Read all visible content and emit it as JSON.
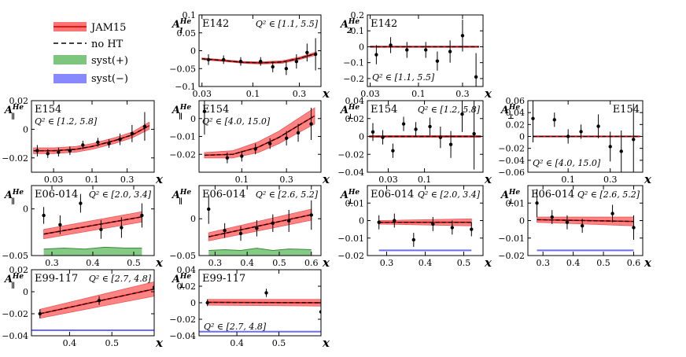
{
  "legend": [
    {
      "key": "jam15",
      "label": "JAM15",
      "color": "#ff5a5a"
    },
    {
      "key": "noht",
      "label": "no HT",
      "color": "#000000"
    },
    {
      "key": "syst_plus",
      "label": "syst(+)",
      "color": "#5cb85c"
    },
    {
      "key": "syst_minus",
      "label": "syst(−)",
      "color": "#6b6bff"
    }
  ],
  "chart_data": [
    {
      "id": "p01",
      "type": "scatter",
      "experiment": "E142",
      "ylabel": "A",
      "ylabel_sub": "1",
      "ylabel_sup": "He",
      "q2": "Q² ∈ [1.1, 5.5]",
      "xlabel": "x",
      "xscale": "log",
      "xlim": [
        0.028,
        0.5
      ],
      "ylim": [
        -0.1,
        0.1
      ],
      "yticks": [
        -0.1,
        -0.05,
        0,
        0.05,
        0.1
      ],
      "ytick_labels": [
        "−0.1",
        "−0.05",
        "0",
        "0.05",
        "0.1"
      ],
      "xticks": [
        0.03,
        0.1,
        0.3
      ],
      "xtick_labels": [
        "0.03",
        "0.1",
        "0.3"
      ],
      "points": [
        [
          0.035,
          -0.025,
          0.015
        ],
        [
          0.05,
          -0.025,
          0.012
        ],
        [
          0.075,
          -0.03,
          0.012
        ],
        [
          0.12,
          -0.03,
          0.012
        ],
        [
          0.16,
          -0.045,
          0.015
        ],
        [
          0.22,
          -0.05,
          0.018
        ],
        [
          0.28,
          -0.03,
          0.02
        ],
        [
          0.36,
          -0.005,
          0.025
        ],
        [
          0.44,
          -0.01,
          0.045
        ]
      ],
      "band": [
        [
          0.03,
          -0.025,
          -0.02
        ],
        [
          0.05,
          -0.03,
          -0.025
        ],
        [
          0.08,
          -0.035,
          -0.03
        ],
        [
          0.12,
          -0.037,
          -0.031
        ],
        [
          0.2,
          -0.035,
          -0.028
        ],
        [
          0.3,
          -0.025,
          -0.018
        ],
        [
          0.45,
          -0.012,
          -0.003
        ]
      ]
    },
    {
      "id": "p02",
      "type": "scatter",
      "experiment": "E142",
      "ylabel": "A",
      "ylabel_sub": "2",
      "ylabel_sup": "He",
      "q2": "Q² ∈ [1.1, 5.5]",
      "xlabel": "x",
      "xscale": "log",
      "xlim": [
        0.028,
        0.5
      ],
      "ylim": [
        -0.25,
        0.2
      ],
      "yticks": [
        -0.2,
        -0.1,
        0,
        0.1,
        0.2
      ],
      "ytick_labels": [
        "−0.2",
        "−0.1",
        "0",
        "0.1",
        "0.2"
      ],
      "xticks": [
        0.03,
        0.1,
        0.3
      ],
      "xtick_labels": [
        "0.03",
        "0.1",
        "0.3"
      ],
      "points": [
        [
          0.035,
          -0.05,
          0.06
        ],
        [
          0.05,
          0.01,
          0.05
        ],
        [
          0.075,
          -0.02,
          0.05
        ],
        [
          0.12,
          -0.02,
          0.05
        ],
        [
          0.16,
          -0.09,
          0.06
        ],
        [
          0.22,
          -0.03,
          0.07
        ],
        [
          0.3,
          0.07,
          0.1
        ],
        [
          0.42,
          -0.19,
          0.15
        ]
      ],
      "band": [
        [
          0.03,
          -0.004,
          0.004
        ],
        [
          0.45,
          -0.004,
          0.004
        ]
      ]
    },
    {
      "id": "p03",
      "type": "scatter",
      "experiment": "E154",
      "ylabel": "A",
      "ylabel_sub": "∥",
      "ylabel_sup": "He",
      "q2": "Q² ∈ [1.2, 5.8]",
      "xlabel": "x",
      "xscale": "log",
      "xlim": [
        0.015,
        0.7
      ],
      "ylim": [
        -0.03,
        0.02
      ],
      "yticks": [
        -0.02,
        0,
        0.02
      ],
      "ytick_labels": [
        "−0.02",
        "0",
        "0.02"
      ],
      "xticks": [
        0.03,
        0.1,
        0.3
      ],
      "xtick_labels": [
        "0.03",
        "0.1",
        "0.3"
      ],
      "points": [
        [
          0.018,
          -0.015,
          0.004
        ],
        [
          0.025,
          -0.017,
          0.003
        ],
        [
          0.035,
          -0.016,
          0.003
        ],
        [
          0.05,
          -0.015,
          0.003
        ],
        [
          0.075,
          -0.011,
          0.003
        ],
        [
          0.12,
          -0.009,
          0.003
        ],
        [
          0.17,
          -0.01,
          0.003
        ],
        [
          0.24,
          -0.007,
          0.004
        ],
        [
          0.35,
          -0.003,
          0.006
        ],
        [
          0.52,
          0.002,
          0.01
        ]
      ],
      "band": [
        [
          0.016,
          -0.017,
          -0.013
        ],
        [
          0.03,
          -0.017,
          -0.013
        ],
        [
          0.06,
          -0.016,
          -0.012
        ],
        [
          0.1,
          -0.014,
          -0.01
        ],
        [
          0.2,
          -0.01,
          -0.006
        ],
        [
          0.35,
          -0.006,
          -0.002
        ],
        [
          0.6,
          0.0,
          0.005
        ]
      ]
    },
    {
      "id": "p04",
      "type": "scatter",
      "experiment": "E154",
      "ylabel": "A",
      "ylabel_sub": "∥",
      "ylabel_sup": "He",
      "q2": "Q² ∈ [4.0, 15.0]",
      "xlabel": "x",
      "xscale": "log",
      "xlim": [
        0.035,
        0.7
      ],
      "ylim": [
        -0.03,
        0.01
      ],
      "yticks": [
        -0.02,
        -0.01,
        0
      ],
      "ytick_labels": [
        "−0.02",
        "−0.01",
        "0"
      ],
      "xticks": [
        0.1,
        0.3
      ],
      "xtick_labels": [
        "0.1",
        "0.3"
      ],
      "points": [
        [
          0.04,
          0.004,
          0.013
        ],
        [
          0.07,
          -0.022,
          0.003
        ],
        [
          0.1,
          -0.021,
          0.003
        ],
        [
          0.14,
          -0.017,
          0.003
        ],
        [
          0.2,
          -0.014,
          0.003
        ],
        [
          0.3,
          -0.011,
          0.004
        ],
        [
          0.4,
          -0.008,
          0.005
        ],
        [
          0.55,
          -0.003,
          0.009
        ]
      ],
      "band": [
        [
          0.04,
          -0.022,
          -0.019
        ],
        [
          0.08,
          -0.022,
          -0.018
        ],
        [
          0.15,
          -0.019,
          -0.013
        ],
        [
          0.25,
          -0.014,
          -0.007
        ],
        [
          0.4,
          -0.008,
          0.0
        ],
        [
          0.6,
          -0.003,
          0.006
        ]
      ]
    },
    {
      "id": "p05",
      "type": "scatter",
      "experiment": "E154",
      "ylabel": "A",
      "ylabel_sub": "⊥",
      "ylabel_sup": "He",
      "q2": "Q² ∈ [1.2, 5.8]",
      "xlabel": "x",
      "xscale": "log",
      "xlim": [
        0.015,
        0.7
      ],
      "ylim": [
        -0.04,
        0.04
      ],
      "yticks": [
        -0.04,
        -0.02,
        0,
        0.02,
        0.04
      ],
      "ytick_labels": [
        "−0.04",
        "−0.02",
        "0",
        "0.02",
        "0.04"
      ],
      "xticks": [
        0.03,
        0.1
      ],
      "xtick_labels": [
        "0.03",
        "0.1"
      ],
      "points": [
        [
          0.018,
          0.005,
          0.01
        ],
        [
          0.025,
          -0.001,
          0.008
        ],
        [
          0.035,
          -0.016,
          0.008
        ],
        [
          0.05,
          0.014,
          0.008
        ],
        [
          0.075,
          0.008,
          0.008
        ],
        [
          0.12,
          0.011,
          0.01
        ],
        [
          0.17,
          -0.001,
          0.012
        ],
        [
          0.24,
          -0.009,
          0.015
        ],
        [
          0.35,
          0.025,
          0.02
        ],
        [
          0.52,
          0.003,
          0.04
        ]
      ],
      "band": [
        [
          0.016,
          -0.001,
          0.001
        ],
        [
          0.65,
          -0.001,
          0.001
        ]
      ]
    },
    {
      "id": "p06",
      "type": "scatter",
      "experiment": "E154",
      "ylabel": "A",
      "ylabel_sub": "⊥",
      "ylabel_sup": "He",
      "q2": "Q² ∈ [4.0, 15.0]",
      "xlabel": "x",
      "xscale": "log",
      "xlim": [
        0.035,
        0.7
      ],
      "ylim": [
        -0.06,
        0.06
      ],
      "yticks": [
        -0.06,
        -0.04,
        -0.02,
        0,
        0.02,
        0.04,
        0.06
      ],
      "ytick_labels": [
        "−0.06",
        "−0.04",
        "−0.02",
        "0",
        "0.02",
        "0.04",
        "0.06"
      ],
      "xticks": [
        0.1,
        0.3
      ],
      "xtick_labels": [
        "0.1",
        "0.3"
      ],
      "points": [
        [
          0.04,
          0.03,
          0.04
        ],
        [
          0.07,
          0.028,
          0.012
        ],
        [
          0.1,
          0.0,
          0.012
        ],
        [
          0.14,
          0.008,
          0.012
        ],
        [
          0.22,
          0.017,
          0.02
        ],
        [
          0.3,
          -0.017,
          0.025
        ],
        [
          0.4,
          -0.025,
          0.035
        ],
        [
          0.55,
          -0.005,
          0.06
        ]
      ],
      "band": [
        [
          0.04,
          -0.001,
          0.001
        ],
        [
          0.65,
          -0.001,
          0.001
        ]
      ]
    },
    {
      "id": "p07",
      "type": "scatter",
      "experiment": "E06-014",
      "ylabel": "A",
      "ylabel_sub": "∥",
      "ylabel_sup": "He",
      "q2": "Q² ∈ [2.0, 3.4]",
      "xlabel": "x",
      "xscale": "linear",
      "xlim": [
        0.25,
        0.55
      ],
      "ylim": [
        -0.05,
        0.025
      ],
      "yticks": [
        -0.05,
        0
      ],
      "ytick_labels": [
        "−0.05",
        "0"
      ],
      "xticks": [
        0.3,
        0.4,
        0.5
      ],
      "xtick_labels": [
        "0.3",
        "0.4",
        "0.5"
      ],
      "points": [
        [
          0.28,
          -0.007,
          0.009
        ],
        [
          0.32,
          -0.017,
          0.01
        ],
        [
          0.37,
          0.006,
          0.01
        ],
        [
          0.42,
          -0.022,
          0.01
        ],
        [
          0.47,
          -0.02,
          0.011
        ],
        [
          0.52,
          -0.007,
          0.013
        ]
      ],
      "band": [
        [
          0.28,
          -0.032,
          -0.022
        ],
        [
          0.52,
          -0.014,
          -0.003
        ]
      ],
      "syst_plus": [
        [
          0.28,
          -0.043
        ],
        [
          0.33,
          -0.042
        ],
        [
          0.38,
          -0.043
        ],
        [
          0.43,
          -0.041
        ],
        [
          0.48,
          -0.042
        ],
        [
          0.52,
          -0.042
        ]
      ]
    },
    {
      "id": "p08",
      "type": "scatter",
      "experiment": "E06-014",
      "ylabel": "A",
      "ylabel_sub": "∥",
      "ylabel_sup": "He",
      "q2": "Q² ∈ [2.6, 5.2]",
      "xlabel": "x",
      "xscale": "linear",
      "xlim": [
        0.25,
        0.63
      ],
      "ylim": [
        -0.05,
        0.045
      ],
      "yticks": [
        -0.05,
        0
      ],
      "ytick_labels": [
        "−0.05",
        "0"
      ],
      "xticks": [
        0.3,
        0.4,
        0.5,
        0.6
      ],
      "xtick_labels": [
        "0.3",
        "0.4",
        "0.5",
        "0.6"
      ],
      "points": [
        [
          0.28,
          0.013,
          0.02
        ],
        [
          0.33,
          -0.016,
          0.01
        ],
        [
          0.38,
          -0.02,
          0.01
        ],
        [
          0.43,
          -0.013,
          0.011
        ],
        [
          0.48,
          -0.006,
          0.012
        ],
        [
          0.53,
          -0.003,
          0.015
        ],
        [
          0.6,
          0.005,
          0.02
        ]
      ],
      "band": [
        [
          0.28,
          -0.03,
          -0.019
        ],
        [
          0.6,
          -0.002,
          0.013
        ]
      ],
      "syst_plus": [
        [
          0.28,
          -0.043
        ],
        [
          0.33,
          -0.042
        ],
        [
          0.38,
          -0.043
        ],
        [
          0.43,
          -0.04
        ],
        [
          0.48,
          -0.043
        ],
        [
          0.53,
          -0.041
        ],
        [
          0.6,
          -0.042
        ]
      ]
    },
    {
      "id": "p09",
      "type": "scatter",
      "experiment": "E06-014",
      "ylabel": "A",
      "ylabel_sub": "⊥",
      "ylabel_sup": "He",
      "q2": "Q² ∈ [2.0, 3.4]",
      "xlabel": "x",
      "xscale": "linear",
      "xlim": [
        0.25,
        0.55
      ],
      "ylim": [
        -0.02,
        0.02
      ],
      "yticks": [
        -0.02,
        -0.01,
        0,
        0.01
      ],
      "ytick_labels": [
        "−0.02",
        "−0.01",
        "0",
        "0.01"
      ],
      "xticks": [
        0.3,
        0.4,
        0.5
      ],
      "xtick_labels": [
        "0.3",
        "0.4",
        "0.5"
      ],
      "points": [
        [
          0.28,
          -0.001,
          0.004
        ],
        [
          0.32,
          0.0,
          0.004
        ],
        [
          0.37,
          -0.011,
          0.004
        ],
        [
          0.42,
          -0.002,
          0.004
        ],
        [
          0.47,
          -0.004,
          0.004
        ],
        [
          0.52,
          -0.005,
          0.004
        ]
      ],
      "band": [
        [
          0.28,
          -0.002,
          0.0
        ],
        [
          0.52,
          -0.003,
          0.001
        ]
      ],
      "syst_minus": [
        [
          0.28,
          -0.017
        ],
        [
          0.52,
          -0.017
        ]
      ]
    },
    {
      "id": "p10",
      "type": "scatter",
      "experiment": "E06-014",
      "ylabel": "A",
      "ylabel_sub": "⊥",
      "ylabel_sup": "He",
      "q2": "Q² ∈ [2.6, 5.2]",
      "xlabel": "x",
      "xscale": "linear",
      "xlim": [
        0.25,
        0.63
      ],
      "ylim": [
        -0.02,
        0.02
      ],
      "yticks": [
        -0.02,
        -0.01,
        0,
        0.01
      ],
      "ytick_labels": [
        "−0.02",
        "−0.01",
        "0",
        "0.01"
      ],
      "xticks": [
        0.3,
        0.4,
        0.5,
        0.6
      ],
      "xtick_labels": [
        "0.3",
        "0.4",
        "0.5",
        "0.6"
      ],
      "points": [
        [
          0.28,
          0.01,
          0.008
        ],
        [
          0.33,
          0.002,
          0.004
        ],
        [
          0.38,
          -0.001,
          0.004
        ],
        [
          0.43,
          -0.003,
          0.004
        ],
        [
          0.53,
          0.004,
          0.005
        ],
        [
          0.6,
          -0.004,
          0.007
        ]
      ],
      "band": [
        [
          0.28,
          -0.001,
          0.002
        ],
        [
          0.6,
          -0.003,
          0.002
        ]
      ],
      "syst_minus": [
        [
          0.28,
          -0.017
        ],
        [
          0.6,
          -0.017
        ]
      ]
    },
    {
      "id": "p11",
      "type": "scatter",
      "experiment": "E99-117",
      "ylabel": "A",
      "ylabel_sub": "∥",
      "ylabel_sup": "He",
      "q2": "Q² ∈ [2.7, 4.8]",
      "xlabel": "x",
      "xscale": "linear",
      "xlim": [
        0.31,
        0.6
      ],
      "ylim": [
        -0.04,
        0.02
      ],
      "yticks": [
        -0.04,
        -0.02,
        0,
        0.02
      ],
      "ytick_labels": [
        "−0.04",
        "−0.02",
        "0",
        "0.02"
      ],
      "xticks": [
        0.4,
        0.5
      ],
      "xtick_labels": [
        "0.4",
        "0.5"
      ],
      "points": [
        [
          0.33,
          -0.02,
          0.004
        ],
        [
          0.47,
          -0.008,
          0.004
        ],
        [
          0.6,
          0.004,
          0.006
        ]
      ],
      "band": [
        [
          0.33,
          -0.024,
          -0.016
        ],
        [
          0.6,
          -0.004,
          0.009
        ]
      ],
      "syst_minus": [
        [
          0.31,
          -0.035
        ],
        [
          0.6,
          -0.035
        ]
      ]
    },
    {
      "id": "p12",
      "type": "scatter",
      "experiment": "E99-117",
      "ylabel": "A",
      "ylabel_sub": "⊥",
      "ylabel_sup": "He",
      "q2": "Q² ∈ [2.7, 4.8]",
      "xlabel": "x",
      "xscale": "linear",
      "xlim": [
        0.31,
        0.6
      ],
      "ylim": [
        -0.04,
        0.04
      ],
      "yticks": [
        -0.04,
        -0.02,
        0,
        0.02,
        0.04
      ],
      "ytick_labels": [
        "−0.04",
        "−0.02",
        "0",
        "0.02",
        "0.04"
      ],
      "xticks": [
        0.4,
        0.5
      ],
      "xtick_labels": [
        "0.4",
        "0.5"
      ],
      "points": [
        [
          0.33,
          0.0,
          0.004
        ],
        [
          0.47,
          0.012,
          0.005
        ],
        [
          0.6,
          -0.011,
          0.01
        ]
      ],
      "band": [
        [
          0.33,
          -0.003,
          0.004
        ],
        [
          0.6,
          -0.004,
          0.004
        ]
      ],
      "syst_minus": [
        [
          0.31,
          -0.035
        ],
        [
          0.6,
          -0.035
        ]
      ]
    }
  ]
}
